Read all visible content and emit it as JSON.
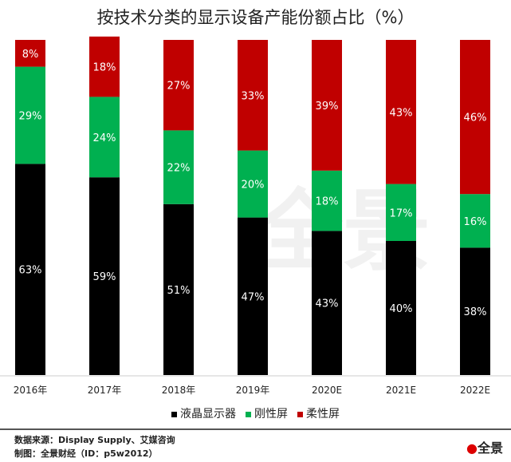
{
  "chart_data": {
    "type": "stacked-bar",
    "title": "按技术分类的显示设备产能份额占比（%）",
    "categories": [
      "2016年",
      "2017年",
      "2018年",
      "2019年",
      "2020E",
      "2021E",
      "2022E"
    ],
    "series": [
      {
        "name": "液晶显示器",
        "color": "#000000",
        "values": [
          63,
          59,
          51,
          47,
          43,
          40,
          38
        ]
      },
      {
        "name": "刚性屏",
        "color": "#00b050",
        "values": [
          29,
          24,
          22,
          20,
          18,
          17,
          16
        ]
      },
      {
        "name": "柔性屏",
        "color": "#c00000",
        "values": [
          8,
          18,
          27,
          33,
          39,
          43,
          46
        ]
      }
    ],
    "ylim": [
      0,
      100
    ],
    "grid": false,
    "legend": "bottom"
  },
  "footer": {
    "source": "数据来源：Display  Supply、艾媒咨询",
    "credit": "制图：全景财经（ID：p5w2012）"
  },
  "logo": {
    "text": "全景"
  },
  "watermark": "全景"
}
